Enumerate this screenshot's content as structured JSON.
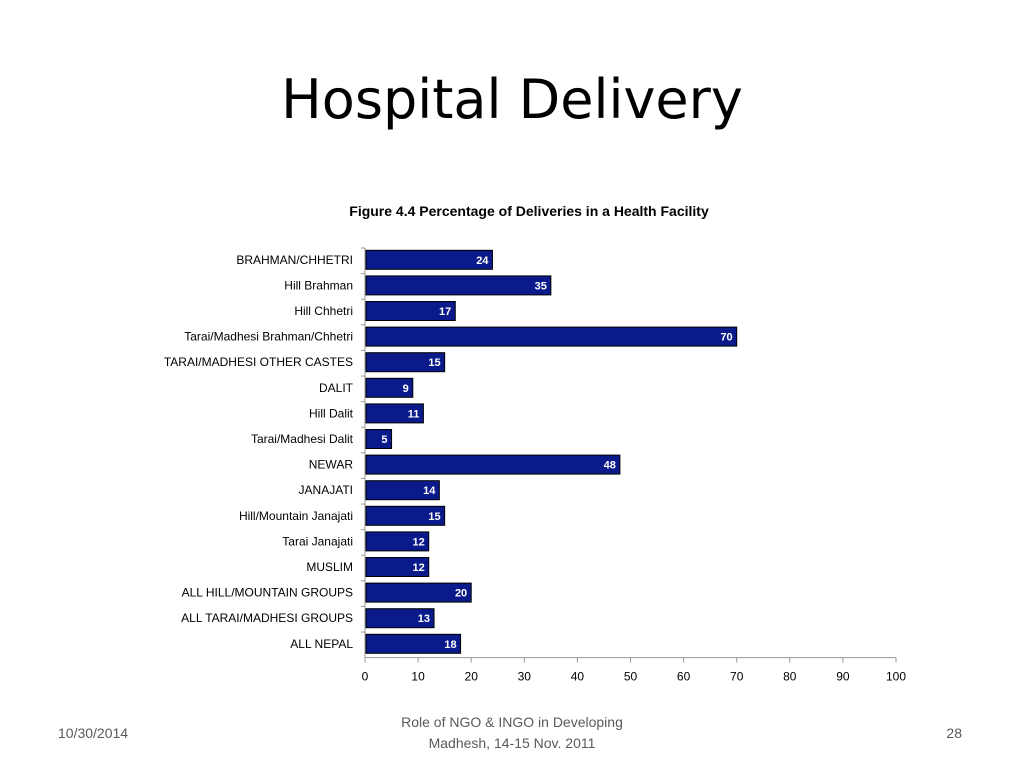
{
  "slide": {
    "title": "Hospital Delivery"
  },
  "footer": {
    "date": "10/30/2014",
    "center_line1": "Role of NGO & INGO in Developing",
    "center_line2": "Madhesh, 14-15 Nov. 2011",
    "page": "28"
  },
  "colors": {
    "bar_fill": "#0a1a8a",
    "bar_stroke": "#000000",
    "value_label": "#ffffff",
    "axis": "#9a9a9a"
  },
  "chart_data": {
    "type": "bar",
    "orientation": "horizontal",
    "title": "Figure 4.4  Percentage of Deliveries in a Health Facility",
    "xlabel": "",
    "ylabel": "",
    "xlim": [
      0,
      100
    ],
    "x_ticks": [
      0,
      10,
      20,
      30,
      40,
      50,
      60,
      70,
      80,
      90,
      100
    ],
    "grid": false,
    "categories": [
      "BRAHMAN/CHHETRI",
      "Hill Brahman",
      "Hill Chhetri",
      "Tarai/Madhesi Brahman/Chhetri",
      "TARAI/MADHESI OTHER CASTES",
      "DALIT",
      "Hill Dalit",
      "Tarai/Madhesi Dalit",
      "NEWAR",
      "JANAJATI",
      "Hill/Mountain Janajati",
      "Tarai Janajati",
      "MUSLIM",
      "ALL HILL/MOUNTAIN GROUPS",
      "ALL TARAI/MADHESI GROUPS",
      "ALL NEPAL"
    ],
    "values": [
      24,
      35,
      17,
      70,
      15,
      9,
      11,
      5,
      48,
      14,
      15,
      12,
      12,
      20,
      13,
      18
    ]
  }
}
